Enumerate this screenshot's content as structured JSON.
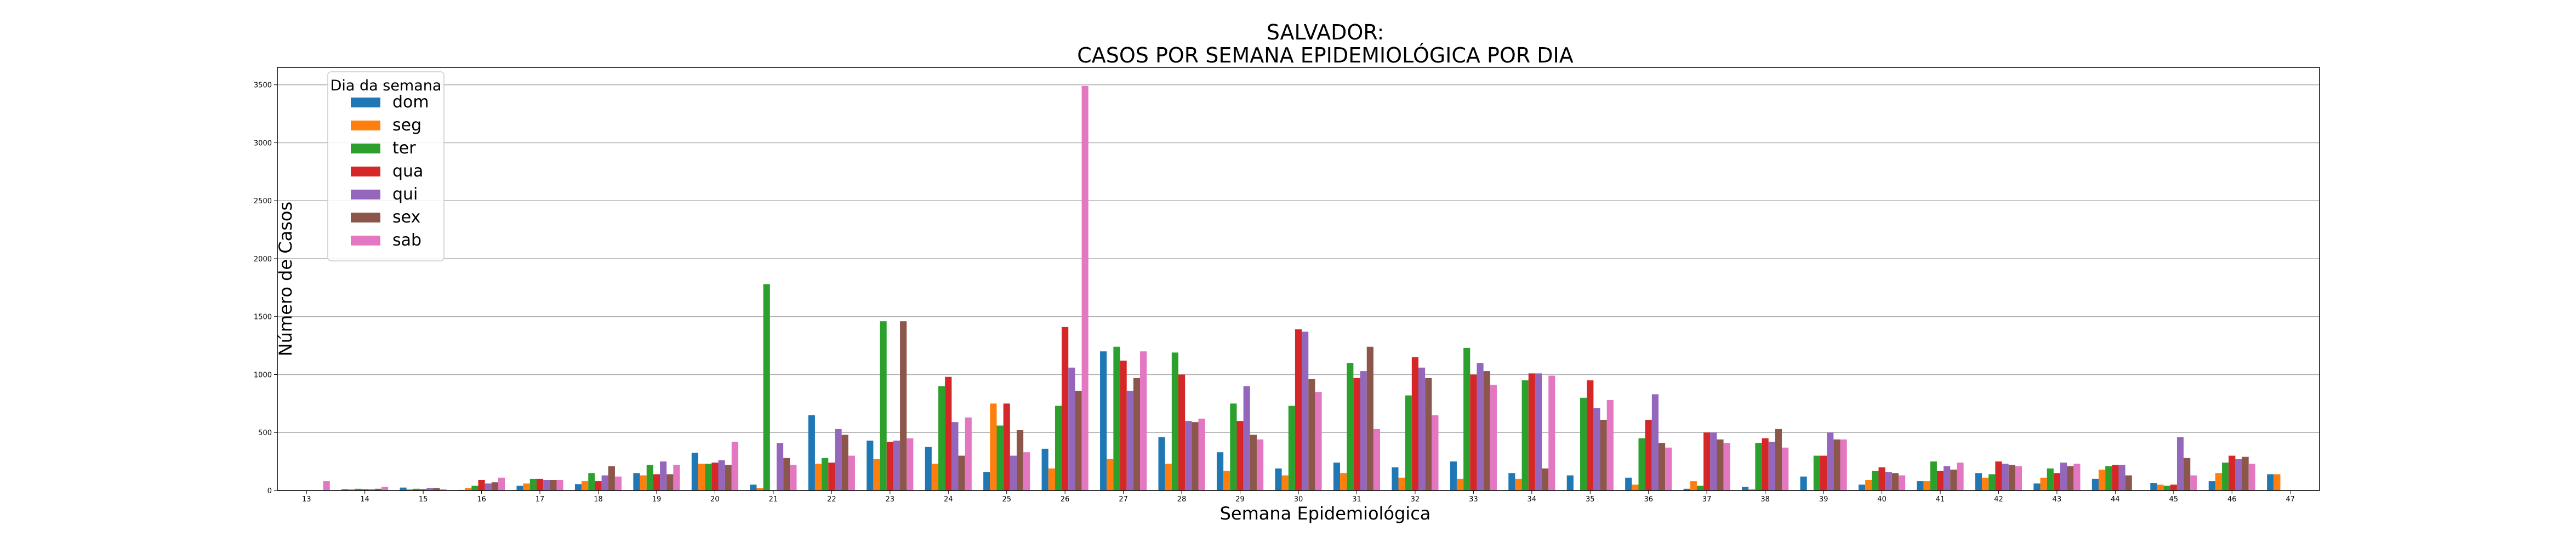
{
  "chart_data": {
    "type": "bar",
    "title": "SALVADOR:",
    "subtitle": "CASOS POR SEMANA EPIDEMIOLÓGICA POR DIA",
    "xlabel": "Semana Epidemiológica",
    "ylabel": "Número de Casos",
    "ylim": [
      0,
      3650
    ],
    "yticks": [
      0,
      500,
      1000,
      1500,
      2000,
      2500,
      3000,
      3500
    ],
    "grid": "horizontal",
    "legend_title": "Dia da semana",
    "legend_position": "top-left",
    "categories": [
      "13",
      "14",
      "15",
      "16",
      "17",
      "18",
      "19",
      "20",
      "21",
      "22",
      "23",
      "24",
      "25",
      "26",
      "27",
      "28",
      "29",
      "30",
      "31",
      "32",
      "33",
      "34",
      "35",
      "36",
      "37",
      "38",
      "39",
      "40",
      "41",
      "42",
      "43",
      "44",
      "45",
      "46",
      "47"
    ],
    "series": [
      {
        "name": "dom",
        "color": "#1f77b4",
        "values": [
          0,
          10,
          25,
          5,
          40,
          55,
          150,
          325,
          50,
          650,
          430,
          375,
          160,
          360,
          1200,
          460,
          330,
          190,
          240,
          200,
          250,
          150,
          130,
          110,
          15,
          30,
          120,
          50,
          80,
          150,
          60,
          100,
          65,
          80,
          140
        ]
      },
      {
        "name": "seg",
        "color": "#ff7f0e",
        "values": [
          0,
          10,
          10,
          20,
          60,
          80,
          130,
          230,
          20,
          230,
          270,
          230,
          750,
          190,
          270,
          230,
          170,
          130,
          150,
          110,
          100,
          100,
          0,
          50,
          80,
          10,
          0,
          90,
          80,
          110,
          110,
          180,
          50,
          150,
          140
        ]
      },
      {
        "name": "ter",
        "color": "#2ca02c",
        "values": [
          0,
          15,
          15,
          40,
          100,
          150,
          220,
          230,
          1780,
          280,
          1460,
          900,
          560,
          730,
          1240,
          1190,
          750,
          730,
          1100,
          820,
          1230,
          950,
          800,
          450,
          40,
          410,
          300,
          170,
          250,
          140,
          190,
          210,
          40,
          240,
          0
        ]
      },
      {
        "name": "qua",
        "color": "#d62728",
        "values": [
          0,
          10,
          10,
          90,
          100,
          80,
          140,
          240,
          0,
          240,
          420,
          980,
          750,
          1410,
          1120,
          1000,
          600,
          1390,
          970,
          1150,
          1000,
          1010,
          950,
          610,
          500,
          450,
          300,
          200,
          170,
          250,
          150,
          220,
          50,
          300,
          0
        ]
      },
      {
        "name": "qui",
        "color": "#9467bd",
        "values": [
          0,
          10,
          20,
          60,
          90,
          130,
          250,
          260,
          410,
          530,
          430,
          590,
          300,
          1060,
          860,
          600,
          900,
          1370,
          1030,
          1060,
          1100,
          1010,
          710,
          830,
          500,
          420,
          500,
          160,
          210,
          230,
          240,
          220,
          460,
          270,
          0
        ]
      },
      {
        "name": "sex",
        "color": "#8c564b",
        "values": [
          0,
          15,
          20,
          70,
          90,
          210,
          140,
          220,
          280,
          480,
          1460,
          300,
          520,
          860,
          970,
          590,
          480,
          960,
          1240,
          970,
          1030,
          190,
          610,
          410,
          440,
          530,
          440,
          150,
          180,
          220,
          210,
          130,
          280,
          290,
          0
        ]
      },
      {
        "name": "sab",
        "color": "#e377c2",
        "values": [
          80,
          30,
          10,
          110,
          90,
          120,
          220,
          420,
          220,
          300,
          450,
          630,
          330,
          3490,
          1200,
          620,
          440,
          850,
          530,
          650,
          910,
          990,
          780,
          370,
          410,
          370,
          440,
          130,
          240,
          210,
          230,
          0,
          130,
          230,
          0
        ]
      }
    ]
  }
}
